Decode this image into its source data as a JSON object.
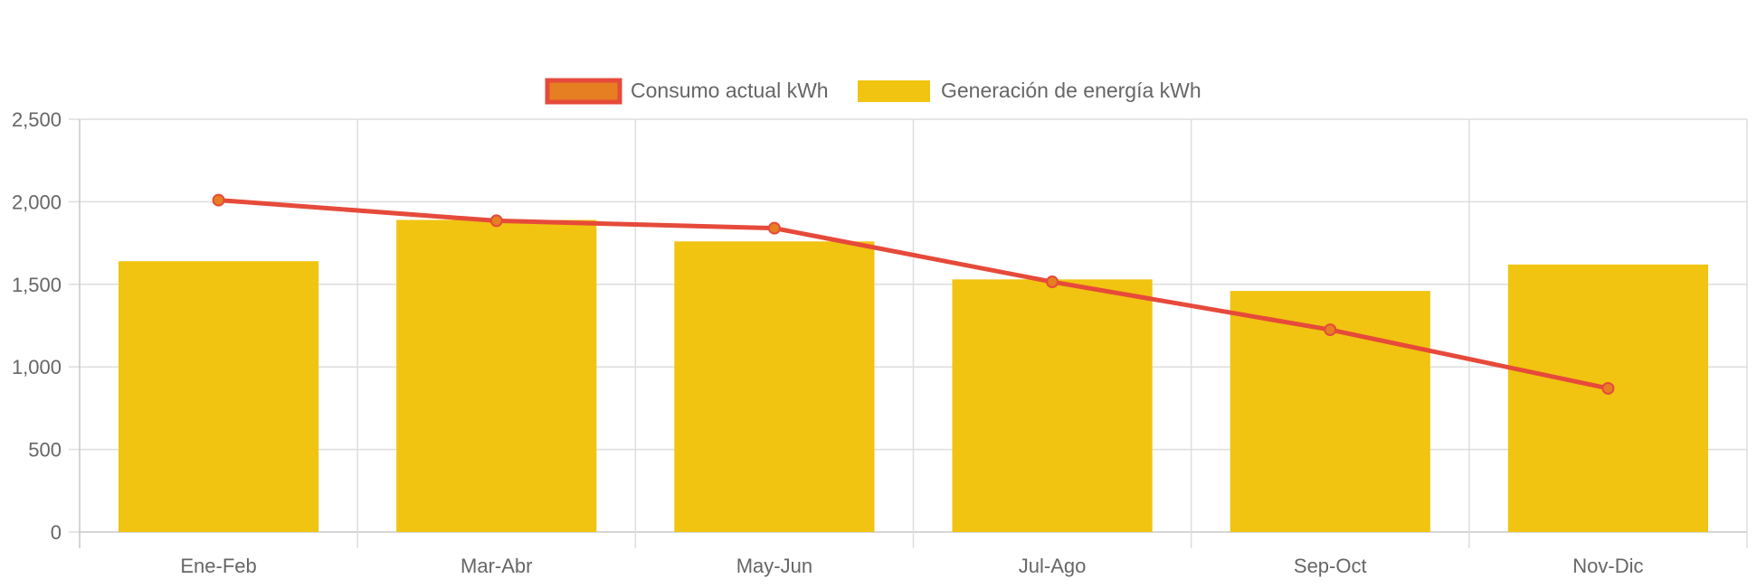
{
  "chart_data": {
    "type": "bar",
    "categories": [
      "Ene-Feb",
      "Mar-Abr",
      "May-Jun",
      "Jul-Ago",
      "Sep-Oct",
      "Nov-Dic"
    ],
    "series": [
      {
        "name": "Generación de energía kWh",
        "type": "bar",
        "values": [
          1640,
          1890,
          1760,
          1530,
          1460,
          1620
        ],
        "color": "#F0C410"
      },
      {
        "name": "Consumo actual kWh",
        "type": "line",
        "values": [
          2010,
          1885,
          1840,
          1515,
          1225,
          870
        ],
        "color": "#E64A3A",
        "point_fill": "#E67E22"
      }
    ],
    "y_ticks": [
      "0",
      "500",
      "1,000",
      "1,500",
      "2,000",
      "2,500"
    ],
    "y_tick_values": [
      0,
      500,
      1000,
      1500,
      2000,
      2500
    ],
    "ylim": [
      0,
      2500
    ],
    "grid": true,
    "legend_position": "top-center"
  }
}
